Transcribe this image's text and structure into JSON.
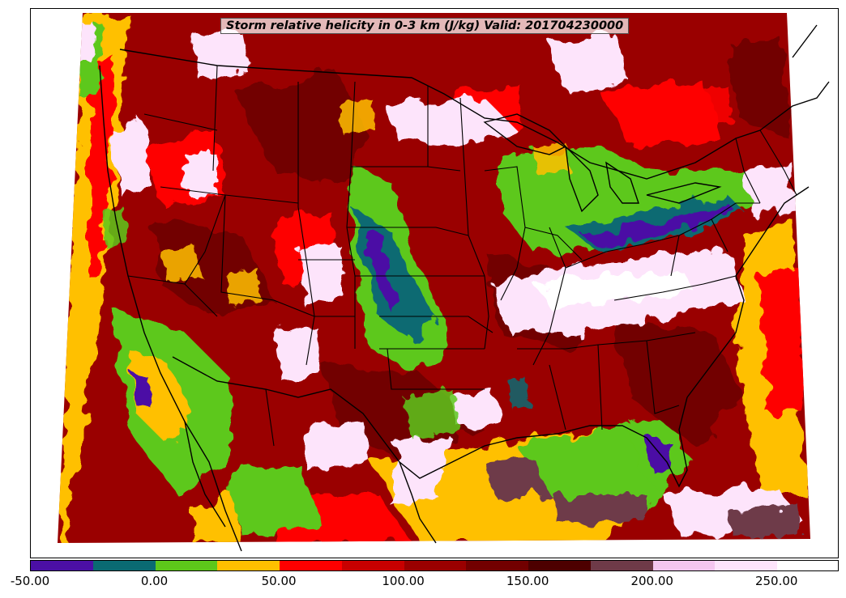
{
  "title": "Storm relative helicity in 0-3 km (J/kg) Valid: 201704230000",
  "colorbar": {
    "colors": [
      "#4b0fa5",
      "#0a6a72",
      "#5dc81a",
      "#ffc000",
      "#fe0000",
      "#c80000",
      "#9a0000",
      "#720000",
      "#4d0000",
      "#6e3a48",
      "#f4c6ef",
      "#fde4fb"
    ],
    "ticks": [
      "-50.00",
      "0.00",
      "50.00",
      "100.00",
      "150.00",
      "200.00",
      "250.00"
    ],
    "min": -50,
    "max": 275,
    "step": 25
  },
  "map": {
    "projection": "lambert-conformal",
    "region": "CONUS",
    "features": [
      "coastlines",
      "country-borders",
      "state-borders"
    ]
  }
}
